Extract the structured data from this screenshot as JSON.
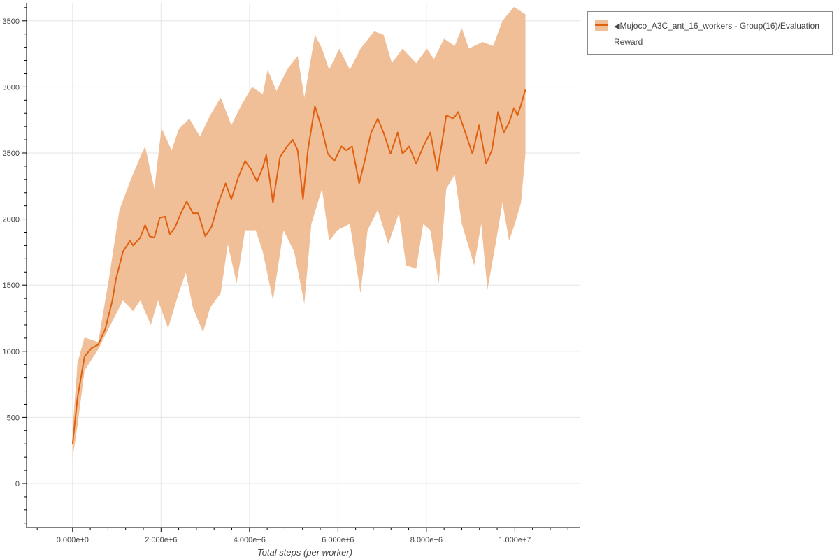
{
  "chart_data": {
    "type": "line",
    "title": "",
    "xlabel": "Total steps (per worker)",
    "ylabel": "",
    "xlim": [
      -1040000,
      11480000
    ],
    "ylim": [
      -333,
      3631
    ],
    "grid": true,
    "legend_position": "outside-top-right",
    "x_ticks": [
      0,
      2000000,
      4000000,
      6000000,
      8000000,
      10000000
    ],
    "x_tick_labels": [
      "0.000e+0",
      "2.000e+6",
      "4.000e+6",
      "6.000e+6",
      "8.000e+6",
      "1.000e+7"
    ],
    "y_ticks": [
      0,
      500,
      1000,
      1500,
      2000,
      2500,
      3000,
      3500
    ],
    "y_tick_labels": [
      "0",
      "500",
      "1000",
      "1500",
      "2000",
      "2500",
      "3000",
      "3500"
    ],
    "colors": {
      "line": "#e06010",
      "band": "#f0bf98"
    },
    "series": [
      {
        "name": "Mujoco_A3C_ant_16_workers - Group(16)/Evaluation Reward",
        "legend_marker": "◀",
        "mean": [
          [
            0,
            300
          ],
          [
            110000.0,
            645
          ],
          [
            270000.0,
            960
          ],
          [
            430000.0,
            1025
          ],
          [
            580000.0,
            1050
          ],
          [
            740000.0,
            1170
          ],
          [
            900000.0,
            1385
          ],
          [
            980000.0,
            1545
          ],
          [
            1140000.0,
            1755
          ],
          [
            1300000.0,
            1835
          ],
          [
            1370000.0,
            1800
          ],
          [
            1530000.0,
            1860
          ],
          [
            1640000.0,
            1955
          ],
          [
            1740000.0,
            1870
          ],
          [
            1850000.0,
            1860
          ],
          [
            1970000.0,
            2010
          ],
          [
            2090000.0,
            2020
          ],
          [
            2200000.0,
            1885
          ],
          [
            2320000.0,
            1940
          ],
          [
            2450000.0,
            2045
          ],
          [
            2580000.0,
            2135
          ],
          [
            2720000.0,
            2045
          ],
          [
            2840000.0,
            2045
          ],
          [
            3000000.0,
            1870
          ],
          [
            3140000.0,
            1940
          ],
          [
            3300000.0,
            2125
          ],
          [
            3460000.0,
            2270
          ],
          [
            3590000.0,
            2150
          ],
          [
            3740000.0,
            2310
          ],
          [
            3900000.0,
            2440
          ],
          [
            4030000.0,
            2380
          ],
          [
            4170000.0,
            2285
          ],
          [
            4300000.0,
            2390
          ],
          [
            4380000.0,
            2485
          ],
          [
            4530000.0,
            2125
          ],
          [
            4690000.0,
            2470
          ],
          [
            4850000.0,
            2550
          ],
          [
            4980000.0,
            2600
          ],
          [
            5090000.0,
            2520
          ],
          [
            5210000.0,
            2150
          ],
          [
            5320000.0,
            2520
          ],
          [
            5480000.0,
            2855
          ],
          [
            5640000.0,
            2680
          ],
          [
            5770000.0,
            2495
          ],
          [
            5920000.0,
            2440
          ],
          [
            6080000.0,
            2550
          ],
          [
            6190000.0,
            2520
          ],
          [
            6320000.0,
            2550
          ],
          [
            6480000.0,
            2270
          ],
          [
            6590000.0,
            2420
          ],
          [
            6750000.0,
            2655
          ],
          [
            6900000.0,
            2760
          ],
          [
            7030000.0,
            2655
          ],
          [
            7190000.0,
            2495
          ],
          [
            7350000.0,
            2655
          ],
          [
            7460000.0,
            2495
          ],
          [
            7610000.0,
            2550
          ],
          [
            7770000.0,
            2420
          ],
          [
            7930000.0,
            2550
          ],
          [
            8090000.0,
            2655
          ],
          [
            8250000.0,
            2365
          ],
          [
            8450000.0,
            2785
          ],
          [
            8610000.0,
            2760
          ],
          [
            8720000.0,
            2810
          ],
          [
            8880000.0,
            2655
          ],
          [
            9040000.0,
            2495
          ],
          [
            9190000.0,
            2710
          ],
          [
            9350000.0,
            2420
          ],
          [
            9480000.0,
            2520
          ],
          [
            9620000.0,
            2810
          ],
          [
            9750000.0,
            2655
          ],
          [
            9870000.0,
            2730
          ],
          [
            9980000.0,
            2840
          ],
          [
            10060000.0,
            2785
          ],
          [
            10140000.0,
            2865
          ],
          [
            10240000.0,
            2980
          ]
        ],
        "upper": [
          [
            0,
            400
          ],
          [
            110000.0,
            910
          ],
          [
            270000.0,
            1105
          ],
          [
            580000.0,
            1070
          ],
          [
            820000.0,
            1545
          ],
          [
            1060000.0,
            2070
          ],
          [
            1300000.0,
            2285
          ],
          [
            1530000.0,
            2470
          ],
          [
            1640000.0,
            2550
          ],
          [
            1850000.0,
            2230
          ],
          [
            2010000.0,
            2690
          ],
          [
            2240000.0,
            2520
          ],
          [
            2400000.0,
            2680
          ],
          [
            2640000.0,
            2760
          ],
          [
            2880000.0,
            2625
          ],
          [
            3110000.0,
            2785
          ],
          [
            3350000.0,
            2920
          ],
          [
            3590000.0,
            2710
          ],
          [
            3820000.0,
            2865
          ],
          [
            4060000.0,
            3000
          ],
          [
            4300000.0,
            2945
          ],
          [
            4410000.0,
            3130
          ],
          [
            4610000.0,
            2970
          ],
          [
            4850000.0,
            3130
          ],
          [
            5090000.0,
            3235
          ],
          [
            5240000.0,
            2920
          ],
          [
            5480000.0,
            3395
          ],
          [
            5640000.0,
            3290
          ],
          [
            5800000.0,
            3130
          ],
          [
            6030000.0,
            3290
          ],
          [
            6270000.0,
            3130
          ],
          [
            6510000.0,
            3290
          ],
          [
            6820000.0,
            3420
          ],
          [
            7030000.0,
            3395
          ],
          [
            7220000.0,
            3180
          ],
          [
            7460000.0,
            3290
          ],
          [
            7770000.0,
            3180
          ],
          [
            8010000.0,
            3290
          ],
          [
            8170000.0,
            3210
          ],
          [
            8400000.0,
            3365
          ],
          [
            8640000.0,
            3310
          ],
          [
            8800000.0,
            3445
          ],
          [
            8960000.0,
            3290
          ],
          [
            9270000.0,
            3340
          ],
          [
            9510000.0,
            3310
          ],
          [
            9720000.0,
            3500
          ],
          [
            9980000.0,
            3605
          ],
          [
            10240000.0,
            3550
          ]
        ],
        "lower": [
          [
            0,
            195
          ],
          [
            110000.0,
            435
          ],
          [
            270000.0,
            855
          ],
          [
            580000.0,
            1015
          ],
          [
            820000.0,
            1175
          ],
          [
            980000.0,
            1280
          ],
          [
            1140000.0,
            1385
          ],
          [
            1370000.0,
            1305
          ],
          [
            1530000.0,
            1385
          ],
          [
            1770000.0,
            1200
          ],
          [
            1930000.0,
            1385
          ],
          [
            2160000.0,
            1175
          ],
          [
            2400000.0,
            1440
          ],
          [
            2560000.0,
            1595
          ],
          [
            2720000.0,
            1330
          ],
          [
            2950000.0,
            1145
          ],
          [
            3110000.0,
            1330
          ],
          [
            3350000.0,
            1440
          ],
          [
            3510000.0,
            1810
          ],
          [
            3710000.0,
            1515
          ],
          [
            3900000.0,
            1915
          ],
          [
            4140000.0,
            1915
          ],
          [
            4300000.0,
            1755
          ],
          [
            4530000.0,
            1385
          ],
          [
            4770000.0,
            1915
          ],
          [
            5010000.0,
            1755
          ],
          [
            5240000.0,
            1360
          ],
          [
            5400000.0,
            1965
          ],
          [
            5640000.0,
            2230
          ],
          [
            5800000.0,
            1835
          ],
          [
            5990000.0,
            1915
          ],
          [
            6270000.0,
            1965
          ],
          [
            6510000.0,
            1440
          ],
          [
            6670000.0,
            1915
          ],
          [
            6900000.0,
            2070
          ],
          [
            7140000.0,
            1810
          ],
          [
            7380000.0,
            2045
          ],
          [
            7540000.0,
            1650
          ],
          [
            7770000.0,
            1625
          ],
          [
            7930000.0,
            1965
          ],
          [
            8090000.0,
            1915
          ],
          [
            8280000.0,
            1515
          ],
          [
            8450000.0,
            2230
          ],
          [
            8640000.0,
            2335
          ],
          [
            8800000.0,
            1965
          ],
          [
            9080000.0,
            1650
          ],
          [
            9240000.0,
            1965
          ],
          [
            9380000.0,
            1465
          ],
          [
            9590000.0,
            1860
          ],
          [
            9720000.0,
            2125
          ],
          [
            9870000.0,
            1835
          ],
          [
            10000000.0,
            1965
          ],
          [
            10140000.0,
            2125
          ],
          [
            10240000.0,
            2495
          ]
        ]
      }
    ]
  }
}
